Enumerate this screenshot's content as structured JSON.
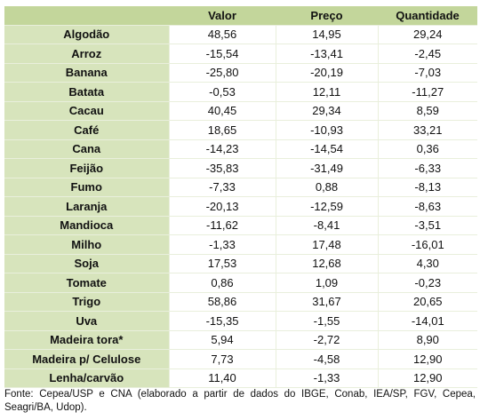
{
  "table": {
    "header": [
      "",
      "Valor",
      "Preço",
      "Quantidade"
    ],
    "rows": [
      [
        "Algodão",
        "48,56",
        "14,95",
        "29,24"
      ],
      [
        "Arroz",
        "-15,54",
        "-13,41",
        "-2,45"
      ],
      [
        "Banana",
        "-25,80",
        "-20,19",
        "-7,03"
      ],
      [
        "Batata",
        "-0,53",
        "12,11",
        "-11,27"
      ],
      [
        "Cacau",
        "40,45",
        "29,34",
        "8,59"
      ],
      [
        "Café",
        "18,65",
        "-10,93",
        "33,21"
      ],
      [
        "Cana",
        "-14,23",
        "-14,54",
        "0,36"
      ],
      [
        "Feijão",
        "-35,83",
        "-31,49",
        "-6,33"
      ],
      [
        "Fumo",
        "-7,33",
        "0,88",
        "-8,13"
      ],
      [
        "Laranja",
        "-20,13",
        "-12,59",
        "-8,63"
      ],
      [
        "Mandioca",
        "-11,62",
        "-8,41",
        "-3,51"
      ],
      [
        "Milho",
        "-1,33",
        "17,48",
        "-16,01"
      ],
      [
        "Soja",
        "17,53",
        "12,68",
        "4,30"
      ],
      [
        "Tomate",
        "0,86",
        "1,09",
        "-0,23"
      ],
      [
        "Trigo",
        "58,86",
        "31,67",
        "20,65"
      ],
      [
        "Uva",
        "-15,35",
        "-1,55",
        "-14,01"
      ],
      [
        "Madeira tora*",
        "5,94",
        "-2,72",
        "8,90"
      ],
      [
        "Madeira p/ Celulose",
        "7,73",
        "-4,58",
        "12,90"
      ],
      [
        "Lenha/carvão",
        "11,40",
        "-1,33",
        "12,90"
      ]
    ]
  },
  "source": "Fonte: Cepea/USP e CNA (elaborado a partir de dados do IBGE, Conab, IEA/SP, FGV, Cepea, Seagri/BA, Udop)."
}
